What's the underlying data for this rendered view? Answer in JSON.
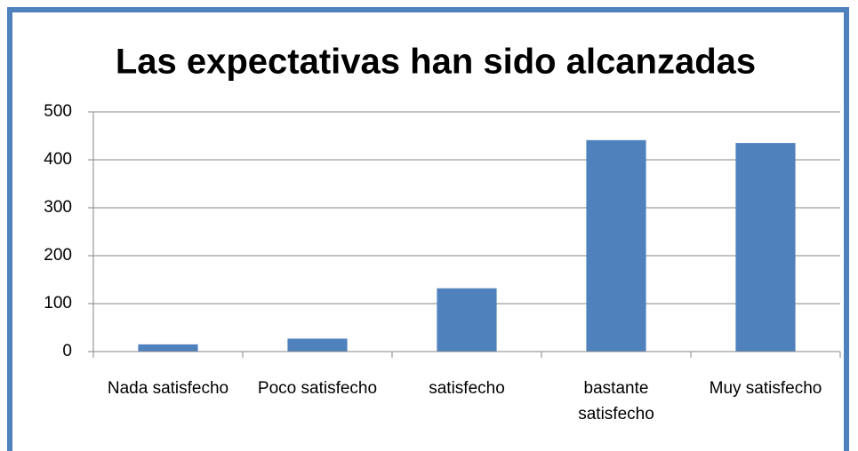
{
  "chart_data": {
    "type": "bar",
    "title": "Las expectativas han sido alcanzadas",
    "categories": [
      "Nada satisfecho",
      "Poco satisfecho",
      "satisfecho",
      "bastante satisfecho",
      "Muy satisfecho"
    ],
    "values": [
      15,
      27,
      132,
      441,
      435
    ],
    "color": "#4f81bd",
    "ylim": [
      0,
      500
    ],
    "yticks": [
      0,
      100,
      200,
      300,
      400,
      500
    ],
    "grid": true
  }
}
